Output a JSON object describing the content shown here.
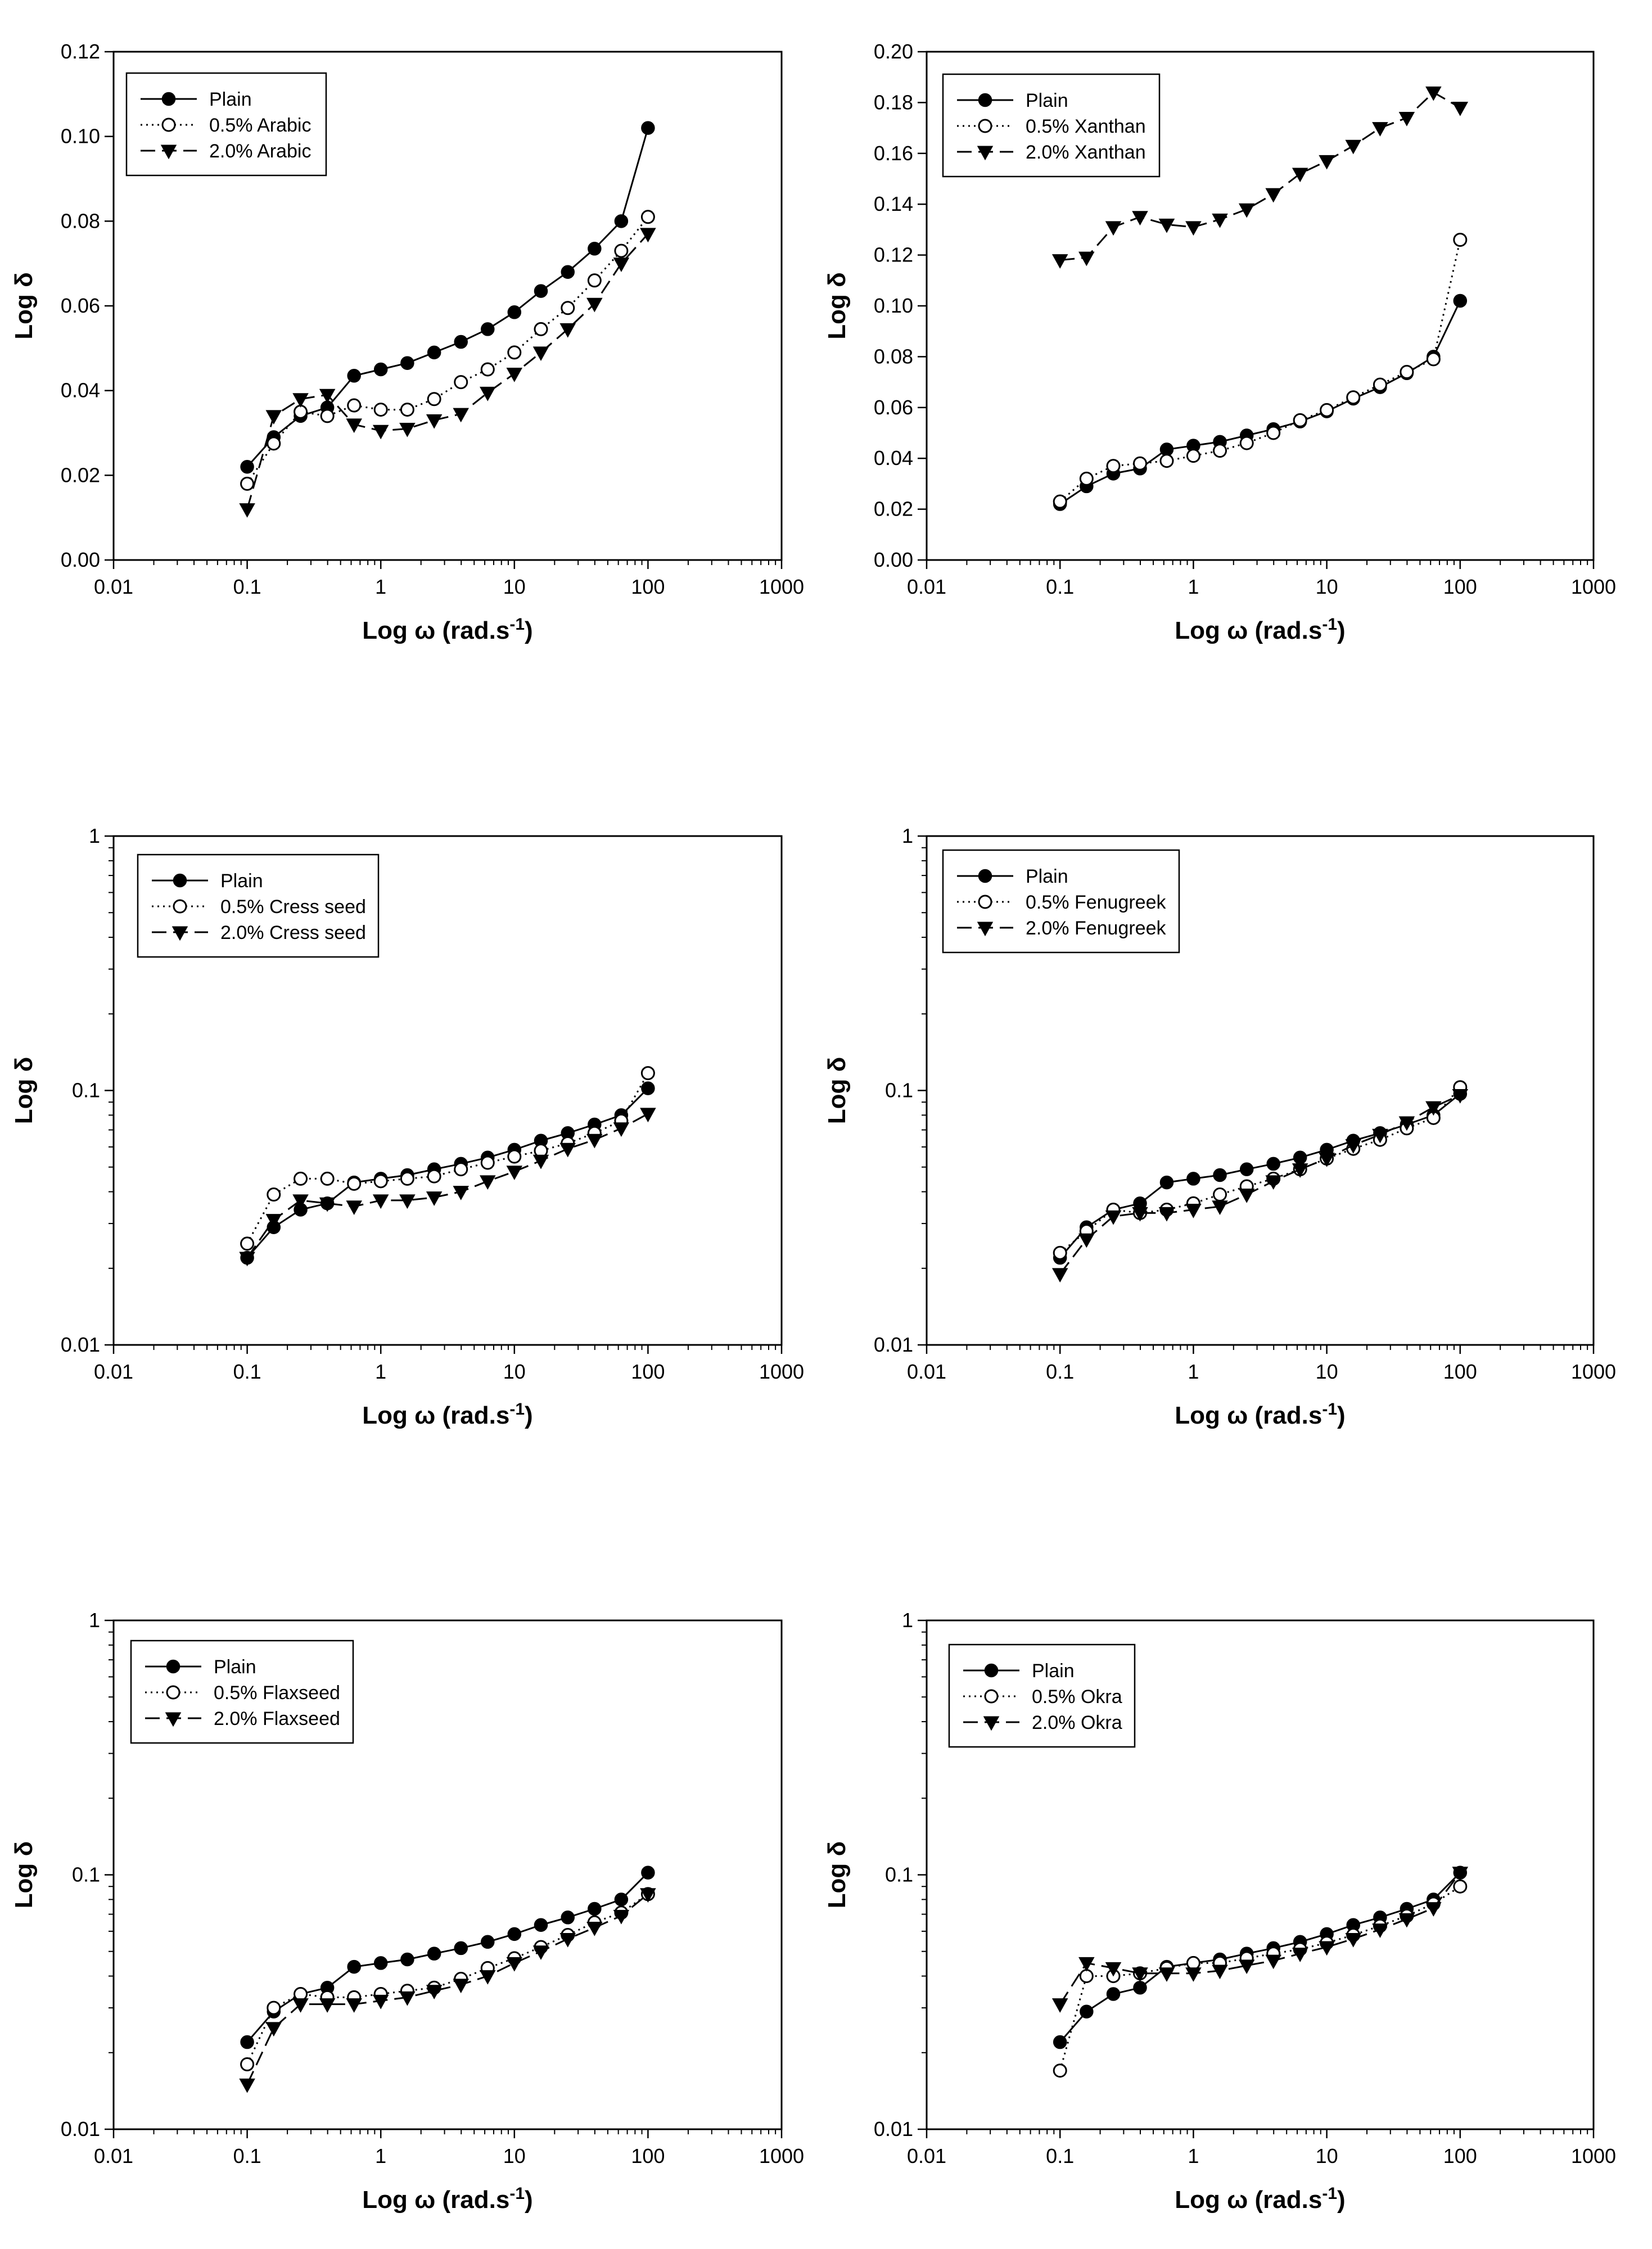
{
  "figure": {
    "charts": [
      {
        "yscale": "linear",
        "ylim": [
          0,
          0.12
        ],
        "yticks": [
          "0.00",
          "0.02",
          "0.04",
          "0.06",
          "0.08",
          "0.10",
          "0.12"
        ],
        "xlabel_main": "Log ω",
        "xlabel_unit": "(rad.s",
        "xlabel_sup": "-1",
        "xlabel_close": ")",
        "ylabel": "Log δ",
        "legend": [
          "Plain",
          "0.5% Arabic",
          "2.0% Arabic"
        ]
      },
      {
        "yscale": "linear",
        "ylim": [
          0,
          0.2
        ],
        "yticks": [
          "0.00",
          "0.02",
          "0.04",
          "0.06",
          "0.08",
          "0.10",
          "0.12",
          "0.14",
          "0.16",
          "0.18",
          "0.20"
        ],
        "xlabel_main": "Log ω",
        "xlabel_unit": "(rad.s",
        "xlabel_sup": "-1",
        "xlabel_close": ")",
        "ylabel": "Log δ",
        "legend": [
          "Plain",
          "0.5% Xanthan",
          "2.0% Xanthan"
        ]
      },
      {
        "yscale": "log",
        "ylim": [
          0.01,
          1
        ],
        "yticks": [
          "0.01",
          "0.1",
          "1"
        ],
        "xlabel_main": "Log ω",
        "xlabel_unit": "(rad.s",
        "xlabel_sup": "-1",
        "xlabel_close": ")",
        "ylabel": "Log δ",
        "legend": [
          "Plain",
          "0.5% Cress seed",
          "2.0% Cress seed"
        ]
      },
      {
        "yscale": "log",
        "ylim": [
          0.01,
          1
        ],
        "yticks": [
          "0.01",
          "0.1",
          "1"
        ],
        "xlabel_main": "Log ω",
        "xlabel_unit": "(rad.s",
        "xlabel_sup": "-1",
        "xlabel_close": ")",
        "ylabel": "Log δ",
        "legend": [
          "Plain",
          "0.5% Fenugreek",
          "2.0% Fenugreek"
        ]
      },
      {
        "yscale": "log",
        "ylim": [
          0.01,
          1
        ],
        "yticks": [
          "0.01",
          "0.1",
          "1"
        ],
        "xlabel_main": "Log ω",
        "xlabel_unit": "(rad.s",
        "xlabel_sup": "-1",
        "xlabel_close": ")",
        "ylabel": "Log δ",
        "legend": [
          "Plain",
          "0.5% Flaxseed",
          "2.0% Flaxseed"
        ]
      },
      {
        "yscale": "log",
        "ylim": [
          0.01,
          1
        ],
        "yticks": [
          "0.01",
          "0.1",
          "1"
        ],
        "xlabel_main": "Log ω",
        "xlabel_unit": "(rad.s",
        "xlabel_sup": "-1",
        "xlabel_close": ")",
        "ylabel": "Log δ",
        "legend": [
          "Plain",
          "0.5% Okra",
          "2.0% Okra"
        ]
      }
    ]
  },
  "chart_data": [
    {
      "type": "line",
      "xscale": "log",
      "yscale": "linear",
      "xlim": [
        0.01,
        1000
      ],
      "ylim": [
        0,
        0.12
      ],
      "xticks": [
        "0.01",
        "0.1",
        "1",
        "10",
        "100",
        "1000"
      ],
      "xlabel": "Log ω (rad.s-1)",
      "ylabel": "Log δ",
      "x": [
        0.1,
        0.158,
        0.251,
        0.398,
        0.631,
        1,
        1.58,
        2.51,
        3.98,
        6.31,
        10,
        15.8,
        25.1,
        39.8,
        63.1,
        100
      ],
      "series": [
        {
          "name": "Plain",
          "marker": "filled-circle",
          "line": "solid",
          "values": [
            0.022,
            0.029,
            0.034,
            0.036,
            0.0435,
            0.045,
            0.0465,
            0.049,
            0.0515,
            0.0545,
            0.0585,
            0.0635,
            0.068,
            0.0735,
            0.08,
            0.102
          ]
        },
        {
          "name": "0.5% Arabic",
          "marker": "open-circle",
          "line": "dotted",
          "values": [
            0.018,
            0.0275,
            0.035,
            0.034,
            0.0365,
            0.0355,
            0.0355,
            0.038,
            0.042,
            0.045,
            0.049,
            0.0545,
            0.0595,
            0.066,
            0.073,
            0.081
          ]
        },
        {
          "name": "2.0% Arabic",
          "marker": "filled-triangle-down",
          "line": "dashed",
          "values": [
            0.012,
            0.034,
            0.038,
            0.039,
            0.032,
            0.0305,
            0.031,
            0.033,
            0.0345,
            0.0395,
            0.044,
            0.049,
            0.0545,
            0.0605,
            0.07,
            0.077
          ]
        }
      ]
    },
    {
      "type": "line",
      "xscale": "log",
      "yscale": "linear",
      "xlim": [
        0.01,
        1000
      ],
      "ylim": [
        0,
        0.2
      ],
      "xticks": [
        "0.01",
        "0.1",
        "1",
        "10",
        "100",
        "1000"
      ],
      "xlabel": "Log ω (rad.s-1)",
      "ylabel": "Log δ",
      "x": [
        0.1,
        0.158,
        0.251,
        0.398,
        0.631,
        1,
        1.58,
        2.51,
        3.98,
        6.31,
        10,
        15.8,
        25.1,
        39.8,
        63.1,
        100
      ],
      "series": [
        {
          "name": "Plain",
          "marker": "filled-circle",
          "line": "solid",
          "values": [
            0.022,
            0.029,
            0.034,
            0.036,
            0.0435,
            0.045,
            0.0465,
            0.049,
            0.0515,
            0.0545,
            0.0585,
            0.0635,
            0.068,
            0.0735,
            0.08,
            0.102
          ]
        },
        {
          "name": "0.5% Xanthan",
          "marker": "open-circle",
          "line": "dotted",
          "values": [
            0.023,
            0.032,
            0.037,
            0.038,
            0.039,
            0.041,
            0.043,
            0.046,
            0.05,
            0.055,
            0.059,
            0.064,
            0.069,
            0.074,
            0.079,
            0.126
          ]
        },
        {
          "name": "2.0% Xanthan",
          "marker": "filled-triangle-down",
          "line": "dashed",
          "values": [
            0.118,
            0.119,
            0.131,
            0.135,
            0.132,
            0.131,
            0.134,
            0.138,
            0.144,
            0.152,
            0.157,
            0.163,
            0.17,
            0.174,
            0.184,
            0.178
          ]
        }
      ]
    },
    {
      "type": "line",
      "xscale": "log",
      "yscale": "log",
      "xlim": [
        0.01,
        1000
      ],
      "ylim": [
        0.01,
        1
      ],
      "xticks": [
        "0.01",
        "0.1",
        "1",
        "10",
        "100",
        "1000"
      ],
      "xlabel": "Log ω (rad.s-1)",
      "ylabel": "Log δ",
      "x": [
        0.1,
        0.158,
        0.251,
        0.398,
        0.631,
        1,
        1.58,
        2.51,
        3.98,
        6.31,
        10,
        15.8,
        25.1,
        39.8,
        63.1,
        100
      ],
      "series": [
        {
          "name": "Plain",
          "marker": "filled-circle",
          "line": "solid",
          "values": [
            0.022,
            0.029,
            0.034,
            0.036,
            0.0435,
            0.045,
            0.0465,
            0.049,
            0.0515,
            0.0545,
            0.0585,
            0.0635,
            0.068,
            0.0735,
            0.08,
            0.102
          ]
        },
        {
          "name": "0.5% Cress seed",
          "marker": "open-circle",
          "line": "dotted",
          "values": [
            0.025,
            0.039,
            0.045,
            0.045,
            0.043,
            0.044,
            0.045,
            0.046,
            0.049,
            0.052,
            0.055,
            0.058,
            0.062,
            0.068,
            0.076,
            0.117
          ]
        },
        {
          "name": "2.0% Cress seed",
          "marker": "filled-triangle-down",
          "line": "dashed",
          "values": [
            0.022,
            0.031,
            0.037,
            0.036,
            0.035,
            0.037,
            0.037,
            0.038,
            0.04,
            0.044,
            0.048,
            0.053,
            0.059,
            0.064,
            0.071,
            0.081
          ]
        }
      ]
    },
    {
      "type": "line",
      "xscale": "log",
      "yscale": "log",
      "xlim": [
        0.01,
        1000
      ],
      "ylim": [
        0.01,
        1
      ],
      "xticks": [
        "0.01",
        "0.1",
        "1",
        "10",
        "100",
        "1000"
      ],
      "xlabel": "Log ω (rad.s-1)",
      "ylabel": "Log δ",
      "x": [
        0.1,
        0.158,
        0.251,
        0.398,
        0.631,
        1,
        1.58,
        2.51,
        3.98,
        6.31,
        10,
        15.8,
        25.1,
        39.8,
        63.1,
        100
      ],
      "series": [
        {
          "name": "Plain",
          "marker": "filled-circle",
          "line": "solid",
          "values": [
            0.022,
            0.029,
            0.034,
            0.036,
            0.0435,
            0.045,
            0.0465,
            0.049,
            0.0515,
            0.0545,
            0.0585,
            0.0635,
            0.068,
            0.0735,
            0.08,
            0.097
          ]
        },
        {
          "name": "0.5% Fenugreek",
          "marker": "open-circle",
          "line": "dotted",
          "values": [
            0.023,
            0.028,
            0.034,
            0.033,
            0.034,
            0.036,
            0.039,
            0.042,
            0.045,
            0.049,
            0.054,
            0.059,
            0.064,
            0.071,
            0.078,
            0.103
          ]
        },
        {
          "name": "2.0% Fenugreek",
          "marker": "filled-triangle-down",
          "line": "dashed",
          "values": [
            0.019,
            0.026,
            0.032,
            0.033,
            0.033,
            0.034,
            0.035,
            0.039,
            0.044,
            0.049,
            0.054,
            0.061,
            0.067,
            0.075,
            0.086,
            0.096
          ]
        }
      ]
    },
    {
      "type": "line",
      "xscale": "log",
      "yscale": "log",
      "xlim": [
        0.01,
        1000
      ],
      "ylim": [
        0.01,
        1
      ],
      "xticks": [
        "0.01",
        "0.1",
        "1",
        "10",
        "100",
        "1000"
      ],
      "xlabel": "Log ω (rad.s-1)",
      "ylabel": "Log δ",
      "x": [
        0.1,
        0.158,
        0.251,
        0.398,
        0.631,
        1,
        1.58,
        2.51,
        3.98,
        6.31,
        10,
        15.8,
        25.1,
        39.8,
        63.1,
        100
      ],
      "series": [
        {
          "name": "Plain",
          "marker": "filled-circle",
          "line": "solid",
          "values": [
            0.022,
            0.029,
            0.034,
            0.036,
            0.0435,
            0.045,
            0.0465,
            0.049,
            0.0515,
            0.0545,
            0.0585,
            0.0635,
            0.068,
            0.0735,
            0.08,
            0.102
          ]
        },
        {
          "name": "0.5% Flaxseed",
          "marker": "open-circle",
          "line": "dotted",
          "values": [
            0.018,
            0.03,
            0.034,
            0.033,
            0.033,
            0.034,
            0.035,
            0.036,
            0.039,
            0.043,
            0.047,
            0.052,
            0.058,
            0.065,
            0.071,
            0.084
          ]
        },
        {
          "name": "2.0% Flaxseed",
          "marker": "filled-triangle-down",
          "line": "dashed",
          "values": [
            0.015,
            0.025,
            0.031,
            0.031,
            0.031,
            0.032,
            0.033,
            0.035,
            0.037,
            0.04,
            0.045,
            0.05,
            0.056,
            0.062,
            0.069,
            0.084
          ]
        }
      ]
    },
    {
      "type": "line",
      "xscale": "log",
      "yscale": "log",
      "xlim": [
        0.01,
        1000
      ],
      "ylim": [
        0.01,
        1
      ],
      "xticks": [
        "0.01",
        "0.1",
        "1",
        "10",
        "100",
        "1000"
      ],
      "xlabel": "Log ω (rad.s-1)",
      "ylabel": "Log δ",
      "x": [
        0.1,
        0.158,
        0.251,
        0.398,
        0.631,
        1,
        1.58,
        2.51,
        3.98,
        6.31,
        10,
        15.8,
        25.1,
        39.8,
        63.1,
        100
      ],
      "series": [
        {
          "name": "Plain",
          "marker": "filled-circle",
          "line": "solid",
          "values": [
            0.022,
            0.029,
            0.034,
            0.036,
            0.0435,
            0.045,
            0.0465,
            0.049,
            0.0515,
            0.0545,
            0.0585,
            0.0635,
            0.068,
            0.0735,
            0.08,
            0.102
          ]
        },
        {
          "name": "0.5% Okra",
          "marker": "open-circle",
          "line": "dotted",
          "values": [
            0.017,
            0.04,
            0.04,
            0.041,
            0.043,
            0.045,
            0.045,
            0.047,
            0.049,
            0.051,
            0.054,
            0.058,
            0.063,
            0.069,
            0.077,
            0.09
          ]
        },
        {
          "name": "2.0% Okra",
          "marker": "filled-triangle-down",
          "line": "dashed",
          "values": [
            0.031,
            0.045,
            0.043,
            0.041,
            0.041,
            0.041,
            0.042,
            0.044,
            0.046,
            0.049,
            0.052,
            0.056,
            0.061,
            0.067,
            0.074,
            0.102
          ]
        }
      ]
    }
  ]
}
